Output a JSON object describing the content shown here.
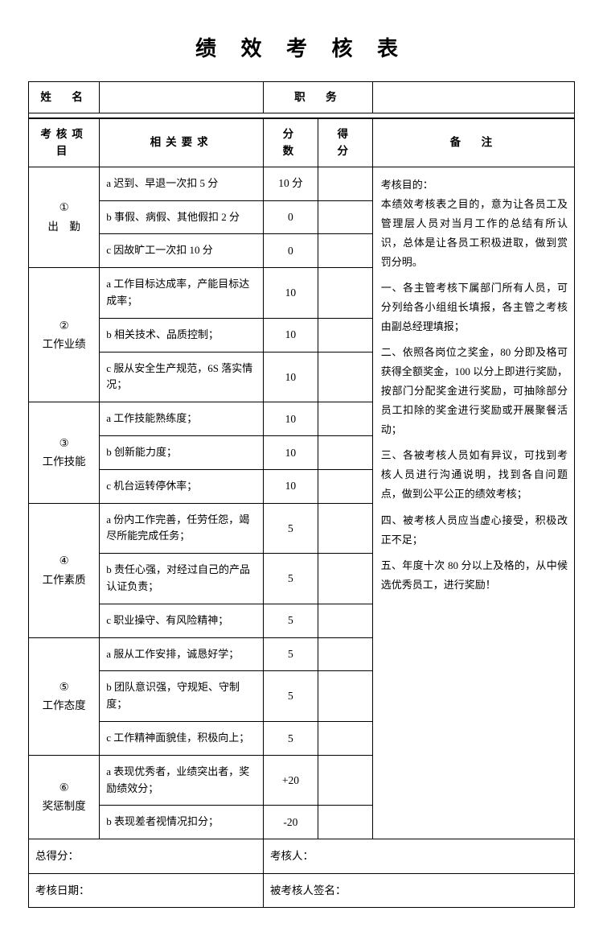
{
  "title": "绩 效 考 核 表",
  "topHeaders": {
    "name": "姓　名",
    "position": "职　务"
  },
  "columnHeaders": {
    "category": "考核项目",
    "requirement": "相关要求",
    "maxScore": "分　数",
    "score": "得　分",
    "notes": "备　注"
  },
  "categories": [
    {
      "num": "①",
      "name": "出　勤",
      "rows": [
        {
          "req": "a 迟到、早退一次扣 5 分",
          "max": "10 分"
        },
        {
          "req": "b 事假、病假、其他假扣 2 分",
          "max": "0"
        },
        {
          "req": "c 因故旷工一次扣 10 分",
          "max": "0"
        }
      ]
    },
    {
      "num": "②",
      "name": "工作业绩",
      "rows": [
        {
          "req": "a 工作目标达成率，产能目标达成率；",
          "max": "10"
        },
        {
          "req": "b 相关技术、品质控制；",
          "max": "10"
        },
        {
          "req": "c 服从安全生产规范，6S 落实情况；",
          "max": "10"
        }
      ]
    },
    {
      "num": "③",
      "name": "工作技能",
      "rows": [
        {
          "req": "a 工作技能熟练度；",
          "max": "10"
        },
        {
          "req": "b 创新能力度；",
          "max": "10"
        },
        {
          "req": "c 机台运转停休率；",
          "max": "10"
        }
      ]
    },
    {
      "num": "④",
      "name": "工作素质",
      "rows": [
        {
          "req": "a 份内工作完善，任劳任怨，竭尽所能完成任务；",
          "max": "5"
        },
        {
          "req": "b 责任心强，对经过自己的产品认证负责；",
          "max": "5"
        },
        {
          "req": "c 职业操守、有风险精神；",
          "max": "5"
        }
      ]
    },
    {
      "num": "⑤",
      "name": "工作态度",
      "rows": [
        {
          "req": "a 服从工作安排，诚恳好学；",
          "max": "5"
        },
        {
          "req": "b 团队意识强，守规矩、守制度；",
          "max": "5"
        },
        {
          "req": "c 工作精神面貌佳，积极向上；",
          "max": "5"
        }
      ]
    },
    {
      "num": "⑥",
      "name": "奖惩制度",
      "rows": [
        {
          "req": "a 表现优秀者，业绩突出者，奖励绩效分；",
          "max": "+20"
        },
        {
          "req": "b 表现差者视情况扣分；",
          "max": "-20"
        }
      ]
    }
  ],
  "notes": [
    "考核目的：",
    "本绩效考核表之目的，意为让各员工及管理层人员对当月工作的总结有所认识，总体是让各员工积极进取，做到赏罚分明。",
    "一、各主管考核下属部门所有人员，可分列给各小组组长填报，各主管之考核由副总经理填报；",
    "二、依照各岗位之奖金，80 分即及格可获得全额奖金，100 以分上即进行奖励，按部门分配奖金进行奖励，可抽除部分员工扣除的奖金进行奖励或开展聚餐活动；",
    "三、各被考核人员如有异议，可找到考核人员进行沟通说明，找到各自问题点，做到公平公正的绩效考核；",
    "四、被考核人员应当虚心接受，积极改正不足；",
    "五、年度十次 80 分以上及格的，从中候选优秀员工，进行奖励！"
  ],
  "footer": {
    "totalScore": "总得分：",
    "assessor": "考核人：",
    "date": "考核日期：",
    "signature": "被考核人签名："
  }
}
